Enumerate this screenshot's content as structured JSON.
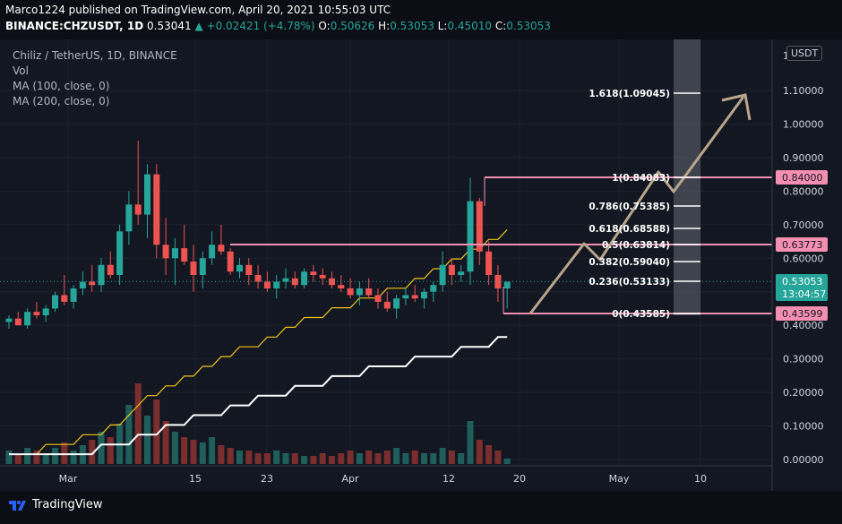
{
  "header": {
    "line1": "Marco1224 published on TradingView.com, April 20, 2021 10:55:03 UTC",
    "symbol": "BINANCE:CHZUSDT, 1D",
    "price": "0.53041",
    "change": "▲ +0.02421 (+4.78%)",
    "o_label": "O:",
    "o": "0.50626",
    "h_label": "H:",
    "h": "0.53053",
    "l_label": "L:",
    "l": "0.45010",
    "c_label": "C:",
    "c": "0.53053"
  },
  "legend": {
    "title": "Chiliz / TetherUS, 1D, BINANCE",
    "vol": "Vol",
    "ma100": "MA (100, close, 0)",
    "ma200": "MA (200, close, 0)"
  },
  "currency": "USDT",
  "footer": {
    "brand": "TradingView"
  },
  "colors": {
    "up": "#26a69a",
    "down": "#ef5350",
    "fib_line": "#f48fb1",
    "ma100": "#f0c419",
    "ma200": "#ffffff",
    "arrow": "#b8a68c"
  },
  "price_axis": [
    "1.10000",
    "1.00000",
    "0.90000",
    "0.80000",
    "0.70000",
    "0.60000",
    "0.50000",
    "0.40000",
    "0.30000",
    "0.20000",
    "0.10000",
    "0.00000"
  ],
  "price_axis_top": "1",
  "time_axis": [
    "Mar",
    "15",
    "23",
    "Apr",
    "12",
    "20",
    "May",
    "10"
  ],
  "price_tags": {
    "p84": "0.84000",
    "p6377": "0.63773",
    "last": "0.53053",
    "countdown": "13:04:57",
    "p4359": "0.43599"
  },
  "fib_labels": [
    "1.618(1.09045)",
    "1(0.84083)",
    "0.786(0.75385)",
    "0.618(0.68588)",
    "0.5(0.63814)",
    "0.382(0.59040)",
    "0.236(0.53133)",
    "0(0.43585)"
  ],
  "chart_data": {
    "type": "candlestick",
    "symbol": "CHZUSDT",
    "interval": "1D",
    "ylim": [
      0,
      1.12
    ],
    "candles": [
      {
        "o": 0.41,
        "h": 0.43,
        "l": 0.39,
        "c": 0.42
      },
      {
        "o": 0.42,
        "h": 0.44,
        "l": 0.4,
        "c": 0.4
      },
      {
        "o": 0.4,
        "h": 0.45,
        "l": 0.39,
        "c": 0.44
      },
      {
        "o": 0.44,
        "h": 0.47,
        "l": 0.42,
        "c": 0.43
      },
      {
        "o": 0.43,
        "h": 0.46,
        "l": 0.41,
        "c": 0.45
      },
      {
        "o": 0.45,
        "h": 0.5,
        "l": 0.44,
        "c": 0.49
      },
      {
        "o": 0.49,
        "h": 0.55,
        "l": 0.46,
        "c": 0.47
      },
      {
        "o": 0.47,
        "h": 0.52,
        "l": 0.45,
        "c": 0.51
      },
      {
        "o": 0.51,
        "h": 0.56,
        "l": 0.49,
        "c": 0.53
      },
      {
        "o": 0.53,
        "h": 0.58,
        "l": 0.5,
        "c": 0.52
      },
      {
        "o": 0.52,
        "h": 0.6,
        "l": 0.5,
        "c": 0.58
      },
      {
        "o": 0.58,
        "h": 0.62,
        "l": 0.54,
        "c": 0.55
      },
      {
        "o": 0.55,
        "h": 0.7,
        "l": 0.52,
        "c": 0.68
      },
      {
        "o": 0.68,
        "h": 0.8,
        "l": 0.64,
        "c": 0.76
      },
      {
        "o": 0.76,
        "h": 0.95,
        "l": 0.7,
        "c": 0.73
      },
      {
        "o": 0.73,
        "h": 0.88,
        "l": 0.66,
        "c": 0.85
      },
      {
        "o": 0.85,
        "h": 0.88,
        "l": 0.6,
        "c": 0.64
      },
      {
        "o": 0.64,
        "h": 0.72,
        "l": 0.55,
        "c": 0.6
      },
      {
        "o": 0.6,
        "h": 0.66,
        "l": 0.52,
        "c": 0.63
      },
      {
        "o": 0.63,
        "h": 0.7,
        "l": 0.58,
        "c": 0.59
      },
      {
        "o": 0.59,
        "h": 0.64,
        "l": 0.5,
        "c": 0.55
      },
      {
        "o": 0.55,
        "h": 0.62,
        "l": 0.51,
        "c": 0.6
      },
      {
        "o": 0.6,
        "h": 0.68,
        "l": 0.58,
        "c": 0.64
      },
      {
        "o": 0.64,
        "h": 0.7,
        "l": 0.61,
        "c": 0.62
      },
      {
        "o": 0.62,
        "h": 0.63,
        "l": 0.55,
        "c": 0.56
      },
      {
        "o": 0.56,
        "h": 0.6,
        "l": 0.54,
        "c": 0.58
      },
      {
        "o": 0.58,
        "h": 0.6,
        "l": 0.52,
        "c": 0.55
      },
      {
        "o": 0.55,
        "h": 0.58,
        "l": 0.51,
        "c": 0.53
      },
      {
        "o": 0.53,
        "h": 0.56,
        "l": 0.5,
        "c": 0.51
      },
      {
        "o": 0.51,
        "h": 0.55,
        "l": 0.48,
        "c": 0.53
      },
      {
        "o": 0.53,
        "h": 0.57,
        "l": 0.51,
        "c": 0.54
      },
      {
        "o": 0.54,
        "h": 0.56,
        "l": 0.51,
        "c": 0.52
      },
      {
        "o": 0.52,
        "h": 0.57,
        "l": 0.51,
        "c": 0.56
      },
      {
        "o": 0.56,
        "h": 0.58,
        "l": 0.53,
        "c": 0.55
      },
      {
        "o": 0.55,
        "h": 0.57,
        "l": 0.52,
        "c": 0.54
      },
      {
        "o": 0.54,
        "h": 0.56,
        "l": 0.51,
        "c": 0.52
      },
      {
        "o": 0.52,
        "h": 0.55,
        "l": 0.5,
        "c": 0.51
      },
      {
        "o": 0.51,
        "h": 0.54,
        "l": 0.48,
        "c": 0.49
      },
      {
        "o": 0.49,
        "h": 0.53,
        "l": 0.46,
        "c": 0.51
      },
      {
        "o": 0.51,
        "h": 0.54,
        "l": 0.48,
        "c": 0.49
      },
      {
        "o": 0.49,
        "h": 0.51,
        "l": 0.45,
        "c": 0.47
      },
      {
        "o": 0.47,
        "h": 0.5,
        "l": 0.44,
        "c": 0.45
      },
      {
        "o": 0.45,
        "h": 0.49,
        "l": 0.42,
        "c": 0.48
      },
      {
        "o": 0.48,
        "h": 0.51,
        "l": 0.46,
        "c": 0.49
      },
      {
        "o": 0.49,
        "h": 0.52,
        "l": 0.47,
        "c": 0.48
      },
      {
        "o": 0.48,
        "h": 0.51,
        "l": 0.45,
        "c": 0.5
      },
      {
        "o": 0.5,
        "h": 0.53,
        "l": 0.47,
        "c": 0.52
      },
      {
        "o": 0.52,
        "h": 0.62,
        "l": 0.5,
        "c": 0.58
      },
      {
        "o": 0.58,
        "h": 0.6,
        "l": 0.52,
        "c": 0.55
      },
      {
        "o": 0.55,
        "h": 0.58,
        "l": 0.53,
        "c": 0.56
      },
      {
        "o": 0.56,
        "h": 0.84,
        "l": 0.52,
        "c": 0.77
      },
      {
        "o": 0.77,
        "h": 0.78,
        "l": 0.58,
        "c": 0.62
      },
      {
        "o": 0.62,
        "h": 0.65,
        "l": 0.52,
        "c": 0.55
      },
      {
        "o": 0.55,
        "h": 0.58,
        "l": 0.47,
        "c": 0.51
      },
      {
        "o": 0.51,
        "h": 0.53,
        "l": 0.45,
        "c": 0.53
      }
    ],
    "volume": [
      0.05,
      0.04,
      0.06,
      0.05,
      0.04,
      0.06,
      0.08,
      0.05,
      0.07,
      0.09,
      0.12,
      0.1,
      0.15,
      0.22,
      0.3,
      0.18,
      0.24,
      0.16,
      0.12,
      0.1,
      0.09,
      0.08,
      0.1,
      0.07,
      0.06,
      0.05,
      0.05,
      0.04,
      0.04,
      0.05,
      0.04,
      0.04,
      0.03,
      0.03,
      0.04,
      0.03,
      0.04,
      0.05,
      0.04,
      0.05,
      0.04,
      0.05,
      0.06,
      0.04,
      0.05,
      0.04,
      0.04,
      0.06,
      0.05,
      0.04,
      0.16,
      0.09,
      0.07,
      0.05,
      0.02
    ],
    "ma100": [
      0.01,
      0.01,
      0.01,
      0.01,
      0.02,
      0.02,
      0.02,
      0.02,
      0.03,
      0.03,
      0.03,
      0.04,
      0.04,
      0.05,
      0.06,
      0.07,
      0.07,
      0.08,
      0.08,
      0.09,
      0.09,
      0.1,
      0.1,
      0.11,
      0.11,
      0.12,
      0.12,
      0.12,
      0.13,
      0.13,
      0.14,
      0.14,
      0.15,
      0.15,
      0.15,
      0.16,
      0.16,
      0.16,
      0.17,
      0.17,
      0.17,
      0.18,
      0.18,
      0.18,
      0.19,
      0.19,
      0.2,
      0.2,
      0.21,
      0.21,
      0.22,
      0.22,
      0.23,
      0.23,
      0.24
    ],
    "ma200": [
      0.01,
      0.01,
      0.01,
      0.01,
      0.01,
      0.01,
      0.01,
      0.01,
      0.01,
      0.01,
      0.02,
      0.02,
      0.02,
      0.02,
      0.03,
      0.03,
      0.03,
      0.04,
      0.04,
      0.04,
      0.05,
      0.05,
      0.05,
      0.05,
      0.06,
      0.06,
      0.06,
      0.07,
      0.07,
      0.07,
      0.07,
      0.08,
      0.08,
      0.08,
      0.08,
      0.09,
      0.09,
      0.09,
      0.09,
      0.1,
      0.1,
      0.1,
      0.1,
      0.1,
      0.11,
      0.11,
      0.11,
      0.11,
      0.11,
      0.12,
      0.12,
      0.12,
      0.12,
      0.13,
      0.13
    ],
    "fibonacci": [
      {
        "ratio": 1.618,
        "price": 1.09045
      },
      {
        "ratio": 1,
        "price": 0.84083
      },
      {
        "ratio": 0.786,
        "price": 0.75385
      },
      {
        "ratio": 0.618,
        "price": 0.68588
      },
      {
        "ratio": 0.5,
        "price": 0.63814
      },
      {
        "ratio": 0.382,
        "price": 0.5904
      },
      {
        "ratio": 0.236,
        "price": 0.53133
      },
      {
        "ratio": 0,
        "price": 0.43585
      }
    ],
    "horizontal_lines": [
      0.84,
      0.63773,
      0.43599
    ],
    "last_price": 0.53053
  }
}
